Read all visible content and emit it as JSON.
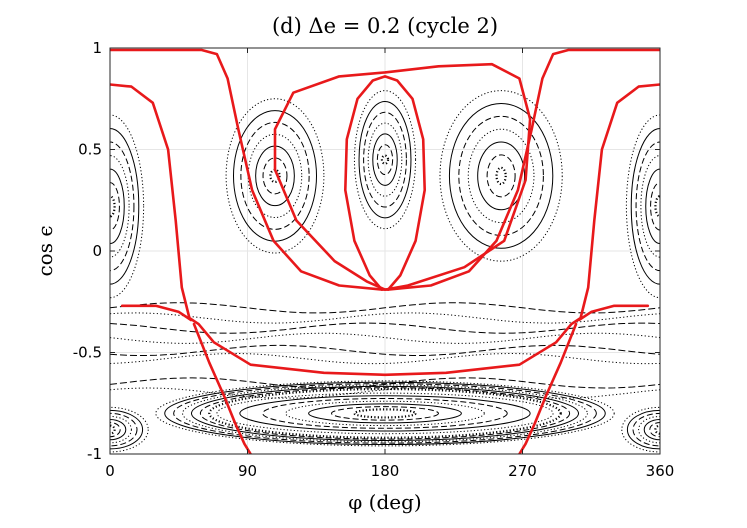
{
  "chart_data": {
    "type": "scatter",
    "title": "(d) Δe = 0.2 (cycle 2)",
    "xlabel": "φ (deg)",
    "ylabel": "cos ϵ",
    "xlim": [
      0,
      360
    ],
    "ylim": [
      -1,
      1
    ],
    "x_ticks": [
      0,
      90,
      180,
      270,
      360
    ],
    "x_tick_labels": [
      "0",
      "90",
      "180",
      "270",
      "360"
    ],
    "y_ticks": [
      -1,
      -0.5,
      0,
      0.5,
      1
    ],
    "y_tick_labels": [
      "-1",
      "-0.5",
      "0",
      "0.5",
      "1"
    ],
    "grid": true,
    "colors": {
      "separatrix": "#e8191b",
      "orbits": "#000000",
      "grid": "#e6e6e6"
    },
    "series": [
      {
        "style": "separatrix",
        "curves": [
          {
            "points": [
              [
                0,
                0.99
              ],
              [
                60,
                0.99
              ],
              [
                70,
                0.97
              ],
              [
                77,
                0.85
              ],
              [
                84,
                0.6
              ],
              [
                93,
                0.3
              ],
              [
                107,
                0.05
              ],
              [
                125,
                -0.1
              ],
              [
                150,
                -0.17
              ],
              [
                178,
                -0.19
              ],
              [
                182,
                -0.19
              ],
              [
                210,
                -0.17
              ],
              [
                235,
                -0.1
              ],
              [
                253,
                0.05
              ],
              [
                267,
                0.3
              ],
              [
                276,
                0.6
              ],
              [
                283,
                0.85
              ],
              [
                290,
                0.97
              ],
              [
                300,
                0.99
              ],
              [
                360,
                0.99
              ]
            ]
          },
          {
            "points": [
              [
                0,
                0.82
              ],
              [
                14,
                0.81
              ],
              [
                28,
                0.73
              ],
              [
                38,
                0.5
              ],
              [
                43,
                0.15
              ],
              [
                47,
                -0.18
              ],
              [
                52,
                -0.33
              ],
              [
                58,
                -0.36
              ],
              [
                68,
                -0.45
              ],
              [
                92,
                -0.56
              ],
              [
                140,
                -0.6
              ],
              [
                180,
                -0.61
              ],
              [
                220,
                -0.6
              ],
              [
                268,
                -0.56
              ],
              [
                292,
                -0.45
              ],
              [
                302,
                -0.36
              ],
              [
                308,
                -0.33
              ],
              [
                313,
                -0.18
              ],
              [
                317,
                0.15
              ],
              [
                322,
                0.5
              ],
              [
                332,
                0.73
              ],
              [
                346,
                0.81
              ],
              [
                360,
                0.82
              ]
            ]
          },
          {
            "points": [
              [
                55,
                -0.36
              ],
              [
                65,
                -0.55
              ],
              [
                75,
                -0.72
              ],
              [
                82,
                -0.85
              ],
              [
                88,
                -0.95
              ],
              [
                92,
                -1.0
              ]
            ]
          },
          {
            "points": [
              [
                305,
                -0.36
              ],
              [
                295,
                -0.55
              ],
              [
                285,
                -0.72
              ],
              [
                278,
                -0.85
              ],
              [
                272,
                -0.95
              ],
              [
                268,
                -1.0
              ]
            ]
          },
          {
            "points": [
              [
                8,
                -0.27
              ],
              [
                30,
                -0.27
              ],
              [
                45,
                -0.3
              ],
              [
                53,
                -0.34
              ]
            ]
          },
          {
            "points": [
              [
                352,
                -0.27
              ],
              [
                330,
                -0.27
              ],
              [
                315,
                -0.3
              ],
              [
                307,
                -0.34
              ]
            ]
          },
          {
            "points": [
              [
                178,
                -0.19
              ],
              [
                170,
                -0.12
              ],
              [
                160,
                0.05
              ],
              [
                154,
                0.3
              ],
              [
                155,
                0.55
              ],
              [
                162,
                0.75
              ],
              [
                172,
                0.84
              ],
              [
                180,
                0.86
              ],
              [
                188,
                0.84
              ],
              [
                198,
                0.75
              ],
              [
                205,
                0.55
              ],
              [
                206,
                0.3
              ],
              [
                200,
                0.05
              ],
              [
                190,
                -0.12
              ],
              [
                182,
                -0.19
              ]
            ]
          },
          {
            "points": [
              [
                180,
                -0.19
              ],
              [
                168,
                -0.15
              ],
              [
                147,
                -0.05
              ],
              [
                122,
                0.15
              ],
              [
                108,
                0.4
              ],
              [
                108,
                0.6
              ],
              [
                120,
                0.78
              ],
              [
                150,
                0.86
              ],
              [
                180,
                0.88
              ],
              [
                215,
                0.91
              ],
              [
                250,
                0.92
              ],
              [
                268,
                0.85
              ],
              [
                275,
                0.65
              ],
              [
                272,
                0.35
              ],
              [
                258,
                0.05
              ],
              [
                232,
                -0.08
              ],
              [
                195,
                -0.17
              ],
              [
                180,
                -0.19
              ]
            ]
          }
        ]
      },
      {
        "style": "orbits",
        "families": [
          {
            "center": [
              108,
              0.37
            ],
            "rx": [
              3,
              32
            ],
            "ry": [
              0.03,
              0.38
            ]
          },
          {
            "center": [
              180,
              0.45
            ],
            "rx": [
              2,
              20
            ],
            "ry": [
              0.02,
              0.34
            ]
          },
          {
            "center": [
              256,
              0.37
            ],
            "rx": [
              3,
              40
            ],
            "ry": [
              0.04,
              0.42
            ]
          },
          {
            "center": [
              0,
              0.22
            ],
            "rx": [
              3,
              22
            ],
            "ry": [
              0.05,
              0.45
            ]
          },
          {
            "center": [
              360,
              0.22
            ],
            "rx": [
              3,
              22
            ],
            "ry": [
              0.05,
              0.45
            ]
          },
          {
            "center": [
              180,
              -0.8
            ],
            "rx": [
              20,
              110
            ],
            "ry": [
              0.02,
              0.1
            ]
          },
          {
            "center": [
              180,
              -0.8
            ],
            "rx": [
              115,
              150
            ],
            "ry": [
              0.12,
              0.16
            ]
          },
          {
            "center": [
              0,
              -0.88
            ],
            "rx": [
              3,
              25
            ],
            "ry": [
              0.02,
              0.11
            ]
          },
          {
            "center": [
              360,
              -0.88
            ],
            "rx": [
              3,
              25
            ],
            "ry": [
              0.02,
              0.11
            ]
          }
        ],
        "bands_y": [
          -0.28,
          -0.33,
          -0.38,
          -0.43,
          -0.49,
          -0.53,
          -0.65,
          -0.7
        ]
      }
    ]
  }
}
